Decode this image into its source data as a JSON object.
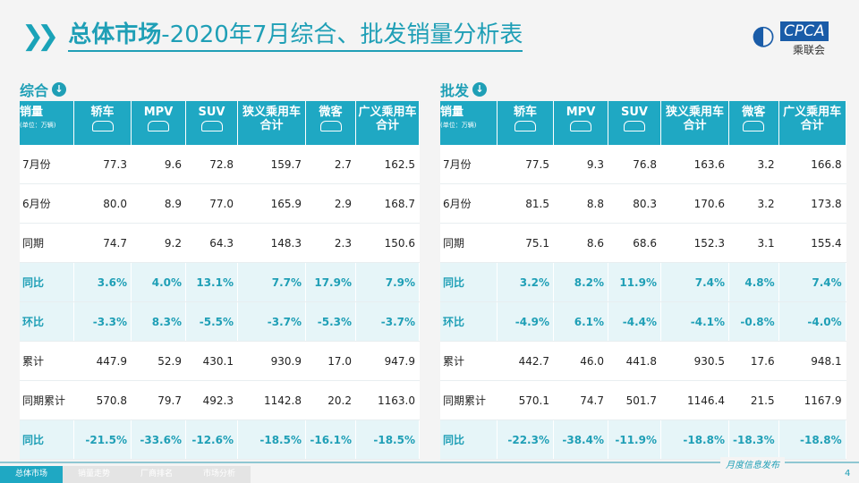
{
  "header": {
    "title_bold": "总体市场",
    "title_rest": "-2020年7月综合、批发销量分析表",
    "logo_text": "CPCA",
    "logo_sub": "乘联会"
  },
  "columns": [
    "轿车",
    "MPV",
    "SUV",
    "狭义乘用车合计",
    "微客",
    "广义乘用车合计"
  ],
  "corner": {
    "label": "销量",
    "unit": "(单位：万辆)"
  },
  "tables": [
    {
      "title": "综合",
      "rows": [
        {
          "label": "7月份",
          "values": [
            "77.3",
            "9.6",
            "72.8",
            "159.7",
            "2.7",
            "162.5"
          ]
        },
        {
          "label": "6月份",
          "values": [
            "80.0",
            "8.9",
            "77.0",
            "165.9",
            "2.9",
            "168.7"
          ]
        },
        {
          "label": "同期",
          "values": [
            "74.7",
            "9.2",
            "64.3",
            "148.3",
            "2.3",
            "150.6"
          ]
        },
        {
          "label": "同比",
          "hl": true,
          "values": [
            "3.6%",
            "4.0%",
            "13.1%",
            "7.7%",
            "17.9%",
            "7.9%"
          ]
        },
        {
          "label": "环比",
          "hl": true,
          "values": [
            "-3.3%",
            "8.3%",
            "-5.5%",
            "-3.7%",
            "-5.3%",
            "-3.7%"
          ]
        },
        {
          "label": "累计",
          "values": [
            "447.9",
            "52.9",
            "430.1",
            "930.9",
            "17.0",
            "947.9"
          ]
        },
        {
          "label": "同期累计",
          "values": [
            "570.8",
            "79.7",
            "492.3",
            "1142.8",
            "20.2",
            "1163.0"
          ]
        },
        {
          "label": "同比",
          "hl": true,
          "values": [
            "-21.5%",
            "-33.6%",
            "-12.6%",
            "-18.5%",
            "-16.1%",
            "-18.5%"
          ]
        }
      ]
    },
    {
      "title": "批发",
      "rows": [
        {
          "label": "7月份",
          "values": [
            "77.5",
            "9.3",
            "76.8",
            "163.6",
            "3.2",
            "166.8"
          ]
        },
        {
          "label": "6月份",
          "values": [
            "81.5",
            "8.8",
            "80.3",
            "170.6",
            "3.2",
            "173.8"
          ]
        },
        {
          "label": "同期",
          "values": [
            "75.1",
            "8.6",
            "68.6",
            "152.3",
            "3.1",
            "155.4"
          ]
        },
        {
          "label": "同比",
          "hl": true,
          "values": [
            "3.2%",
            "8.2%",
            "11.9%",
            "7.4%",
            "4.8%",
            "7.4%"
          ]
        },
        {
          "label": "环比",
          "hl": true,
          "values": [
            "-4.9%",
            "6.1%",
            "-4.4%",
            "-4.1%",
            "-0.8%",
            "-4.0%"
          ]
        },
        {
          "label": "累计",
          "values": [
            "442.7",
            "46.0",
            "441.8",
            "930.5",
            "17.6",
            "948.1"
          ]
        },
        {
          "label": "同期累计",
          "values": [
            "570.1",
            "74.7",
            "501.7",
            "1146.4",
            "21.5",
            "1167.9"
          ]
        },
        {
          "label": "同比",
          "hl": true,
          "values": [
            "-22.3%",
            "-38.4%",
            "-11.9%",
            "-18.8%",
            "-18.3%",
            "-18.8%"
          ]
        }
      ]
    }
  ],
  "footer": {
    "tabs": [
      "总体市场",
      "销量走势",
      "厂商排名",
      "市场分析"
    ],
    "note": "月度信息发布",
    "page": "4"
  }
}
